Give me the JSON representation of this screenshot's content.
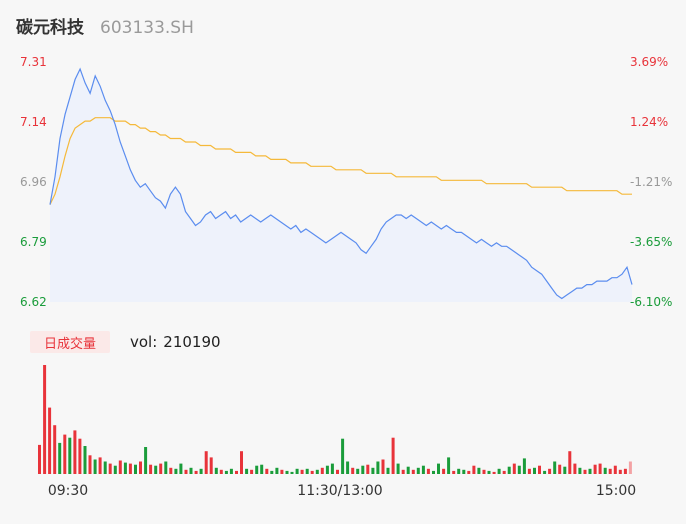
{
  "header": {
    "name": "碳元科技",
    "code": "603133.SH"
  },
  "volume_panel": {
    "badge": "日成交量",
    "vol_label": "vol:",
    "vol_value": "210190"
  },
  "colors": {
    "price": "#5b8def",
    "avg": "#f5b93a",
    "up": "#e8333a",
    "down": "#1a9c3a",
    "neutral": "#999999"
  },
  "chart_data": {
    "type": "line",
    "price_axis": {
      "ticks": [
        "7.31",
        "7.14",
        "6.96",
        "6.79",
        "6.62"
      ],
      "ylim": [
        6.62,
        7.31
      ]
    },
    "pct_axis": {
      "ticks": [
        "3.69%",
        "1.24%",
        "-1.21%",
        "-3.65%",
        "-6.10%"
      ]
    },
    "x_ticks": [
      "09:30",
      "11:30/13:00",
      "15:00"
    ],
    "price": [
      6.9,
      6.98,
      7.09,
      7.16,
      7.21,
      7.26,
      7.29,
      7.25,
      7.22,
      7.27,
      7.24,
      7.2,
      7.17,
      7.13,
      7.08,
      7.04,
      7.0,
      6.97,
      6.95,
      6.96,
      6.94,
      6.92,
      6.91,
      6.89,
      6.93,
      6.95,
      6.93,
      6.88,
      6.86,
      6.84,
      6.85,
      6.87,
      6.88,
      6.86,
      6.87,
      6.88,
      6.86,
      6.87,
      6.85,
      6.86,
      6.87,
      6.86,
      6.85,
      6.86,
      6.87,
      6.86,
      6.85,
      6.84,
      6.83,
      6.84,
      6.82,
      6.83,
      6.82,
      6.81,
      6.8,
      6.79,
      6.8,
      6.81,
      6.82,
      6.81,
      6.8,
      6.79,
      6.77,
      6.76,
      6.78,
      6.8,
      6.83,
      6.85,
      6.86,
      6.87,
      6.87,
      6.86,
      6.87,
      6.86,
      6.85,
      6.84,
      6.85,
      6.84,
      6.83,
      6.84,
      6.83,
      6.82,
      6.82,
      6.81,
      6.8,
      6.79,
      6.8,
      6.79,
      6.78,
      6.79,
      6.78,
      6.78,
      6.77,
      6.76,
      6.75,
      6.74,
      6.72,
      6.71,
      6.7,
      6.68,
      6.66,
      6.64,
      6.63,
      6.64,
      6.65,
      6.66,
      6.66,
      6.67,
      6.67,
      6.68,
      6.68,
      6.68,
      6.69,
      6.69,
      6.7,
      6.72,
      6.67
    ],
    "avg": [
      6.9,
      6.93,
      6.98,
      7.04,
      7.09,
      7.12,
      7.13,
      7.14,
      7.14,
      7.15,
      7.15,
      7.15,
      7.15,
      7.14,
      7.14,
      7.14,
      7.13,
      7.13,
      7.12,
      7.12,
      7.11,
      7.11,
      7.1,
      7.1,
      7.09,
      7.09,
      7.09,
      7.08,
      7.08,
      7.08,
      7.07,
      7.07,
      7.07,
      7.06,
      7.06,
      7.06,
      7.06,
      7.05,
      7.05,
      7.05,
      7.05,
      7.04,
      7.04,
      7.04,
      7.03,
      7.03,
      7.03,
      7.03,
      7.02,
      7.02,
      7.02,
      7.02,
      7.01,
      7.01,
      7.01,
      7.01,
      7.01,
      7.0,
      7.0,
      7.0,
      7.0,
      7.0,
      7.0,
      6.99,
      6.99,
      6.99,
      6.99,
      6.99,
      6.99,
      6.98,
      6.98,
      6.98,
      6.98,
      6.98,
      6.98,
      6.98,
      6.98,
      6.98,
      6.97,
      6.97,
      6.97,
      6.97,
      6.97,
      6.97,
      6.97,
      6.97,
      6.97,
      6.96,
      6.96,
      6.96,
      6.96,
      6.96,
      6.96,
      6.96,
      6.96,
      6.96,
      6.95,
      6.95,
      6.95,
      6.95,
      6.95,
      6.95,
      6.95,
      6.94,
      6.94,
      6.94,
      6.94,
      6.94,
      6.94,
      6.94,
      6.94,
      6.94,
      6.94,
      6.94,
      6.93,
      6.93,
      6.93
    ],
    "volume": [
      {
        "v": 28,
        "d": "up"
      },
      {
        "v": 105,
        "d": "up"
      },
      {
        "v": 64,
        "d": "up"
      },
      {
        "v": 47,
        "d": "up"
      },
      {
        "v": 30,
        "d": "down"
      },
      {
        "v": 38,
        "d": "up"
      },
      {
        "v": 35,
        "d": "down"
      },
      {
        "v": 42,
        "d": "up"
      },
      {
        "v": 34,
        "d": "up"
      },
      {
        "v": 27,
        "d": "down"
      },
      {
        "v": 18,
        "d": "up"
      },
      {
        "v": 14,
        "d": "down"
      },
      {
        "v": 16,
        "d": "up"
      },
      {
        "v": 12,
        "d": "down"
      },
      {
        "v": 10,
        "d": "up"
      },
      {
        "v": 8,
        "d": "down"
      },
      {
        "v": 13,
        "d": "up"
      },
      {
        "v": 11,
        "d": "down"
      },
      {
        "v": 10,
        "d": "up"
      },
      {
        "v": 9,
        "d": "down"
      },
      {
        "v": 12,
        "d": "up"
      },
      {
        "v": 26,
        "d": "down"
      },
      {
        "v": 9,
        "d": "up"
      },
      {
        "v": 8,
        "d": "down"
      },
      {
        "v": 10,
        "d": "up"
      },
      {
        "v": 12,
        "d": "down"
      },
      {
        "v": 6,
        "d": "up"
      },
      {
        "v": 5,
        "d": "down"
      },
      {
        "v": 10,
        "d": "down"
      },
      {
        "v": 4,
        "d": "up"
      },
      {
        "v": 6,
        "d": "down"
      },
      {
        "v": 3,
        "d": "up"
      },
      {
        "v": 5,
        "d": "down"
      },
      {
        "v": 22,
        "d": "up"
      },
      {
        "v": 16,
        "d": "up"
      },
      {
        "v": 6,
        "d": "down"
      },
      {
        "v": 4,
        "d": "up"
      },
      {
        "v": 3,
        "d": "down"
      },
      {
        "v": 5,
        "d": "down"
      },
      {
        "v": 3,
        "d": "up"
      },
      {
        "v": 22,
        "d": "up"
      },
      {
        "v": 5,
        "d": "down"
      },
      {
        "v": 4,
        "d": "up"
      },
      {
        "v": 8,
        "d": "down"
      },
      {
        "v": 9,
        "d": "down"
      },
      {
        "v": 5,
        "d": "up"
      },
      {
        "v": 3,
        "d": "down"
      },
      {
        "v": 6,
        "d": "down"
      },
      {
        "v": 4,
        "d": "up"
      },
      {
        "v": 3,
        "d": "down"
      },
      {
        "v": 2,
        "d": "down"
      },
      {
        "v": 5,
        "d": "down"
      },
      {
        "v": 4,
        "d": "up"
      },
      {
        "v": 5,
        "d": "down"
      },
      {
        "v": 3,
        "d": "up"
      },
      {
        "v": 4,
        "d": "down"
      },
      {
        "v": 6,
        "d": "up"
      },
      {
        "v": 8,
        "d": "down"
      },
      {
        "v": 10,
        "d": "down"
      },
      {
        "v": 4,
        "d": "up"
      },
      {
        "v": 34,
        "d": "down"
      },
      {
        "v": 12,
        "d": "down"
      },
      {
        "v": 6,
        "d": "up"
      },
      {
        "v": 5,
        "d": "down"
      },
      {
        "v": 8,
        "d": "down"
      },
      {
        "v": 9,
        "d": "up"
      },
      {
        "v": 6,
        "d": "down"
      },
      {
        "v": 12,
        "d": "down"
      },
      {
        "v": 14,
        "d": "up"
      },
      {
        "v": 6,
        "d": "down"
      },
      {
        "v": 35,
        "d": "up"
      },
      {
        "v": 10,
        "d": "down"
      },
      {
        "v": 4,
        "d": "up"
      },
      {
        "v": 7,
        "d": "down"
      },
      {
        "v": 4,
        "d": "up"
      },
      {
        "v": 6,
        "d": "down"
      },
      {
        "v": 8,
        "d": "down"
      },
      {
        "v": 5,
        "d": "up"
      },
      {
        "v": 3,
        "d": "down"
      },
      {
        "v": 10,
        "d": "down"
      },
      {
        "v": 5,
        "d": "up"
      },
      {
        "v": 16,
        "d": "down"
      },
      {
        "v": 3,
        "d": "up"
      },
      {
        "v": 5,
        "d": "down"
      },
      {
        "v": 4,
        "d": "down"
      },
      {
        "v": 3,
        "d": "up"
      },
      {
        "v": 8,
        "d": "up"
      },
      {
        "v": 6,
        "d": "down"
      },
      {
        "v": 4,
        "d": "up"
      },
      {
        "v": 3,
        "d": "down"
      },
      {
        "v": 2,
        "d": "up"
      },
      {
        "v": 5,
        "d": "down"
      },
      {
        "v": 3,
        "d": "up"
      },
      {
        "v": 7,
        "d": "down"
      },
      {
        "v": 10,
        "d": "up"
      },
      {
        "v": 8,
        "d": "down"
      },
      {
        "v": 15,
        "d": "down"
      },
      {
        "v": 5,
        "d": "up"
      },
      {
        "v": 6,
        "d": "down"
      },
      {
        "v": 8,
        "d": "up"
      },
      {
        "v": 3,
        "d": "down"
      },
      {
        "v": 5,
        "d": "up"
      },
      {
        "v": 12,
        "d": "down"
      },
      {
        "v": 9,
        "d": "up"
      },
      {
        "v": 7,
        "d": "down"
      },
      {
        "v": 22,
        "d": "up"
      },
      {
        "v": 10,
        "d": "up"
      },
      {
        "v": 6,
        "d": "down"
      },
      {
        "v": 4,
        "d": "up"
      },
      {
        "v": 5,
        "d": "down"
      },
      {
        "v": 9,
        "d": "up"
      },
      {
        "v": 10,
        "d": "up"
      },
      {
        "v": 6,
        "d": "down"
      },
      {
        "v": 5,
        "d": "up"
      },
      {
        "v": 8,
        "d": "up"
      },
      {
        "v": 4,
        "d": "up"
      },
      {
        "v": 5,
        "d": "up"
      },
      {
        "v": 12,
        "d": "neutral"
      }
    ]
  }
}
